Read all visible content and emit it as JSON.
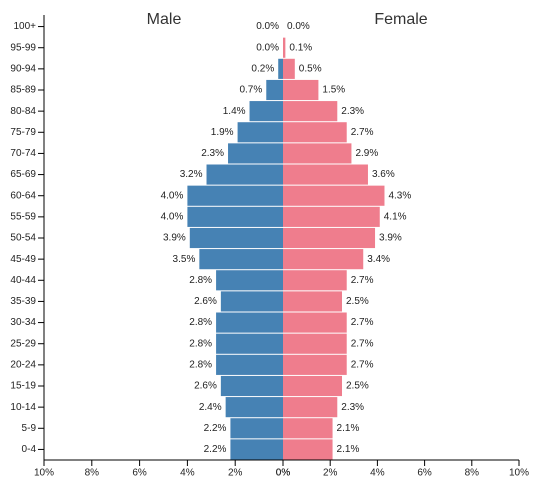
{
  "chart_data": [
    {
      "type": "pyramid-half",
      "title": "Male",
      "color": "#4682b4",
      "categories": [
        "100+",
        "95-99",
        "90-94",
        "85-89",
        "80-84",
        "75-79",
        "70-74",
        "65-69",
        "60-64",
        "55-59",
        "50-54",
        "45-49",
        "40-44",
        "35-39",
        "30-34",
        "25-29",
        "20-24",
        "15-19",
        "10-14",
        "5-9",
        "0-4"
      ],
      "values": [
        0.0,
        0.0,
        0.2,
        0.7,
        1.4,
        1.9,
        2.3,
        3.2,
        4.0,
        4.0,
        3.9,
        3.5,
        2.8,
        2.6,
        2.8,
        2.8,
        2.8,
        2.6,
        2.4,
        2.2,
        2.2
      ],
      "value_labels": [
        "0.0%",
        "0.0%",
        "0.2%",
        "0.7%",
        "1.4%",
        "1.9%",
        "2.3%",
        "3.2%",
        "4.0%",
        "4.0%",
        "3.9%",
        "3.5%",
        "2.8%",
        "2.6%",
        "2.8%",
        "2.8%",
        "2.8%",
        "2.6%",
        "2.4%",
        "2.2%",
        "2.2%"
      ],
      "xlim": [
        10,
        0
      ],
      "xticks": [
        {
          "value": 10,
          "label": "10%"
        },
        {
          "value": 8,
          "label": "8%"
        },
        {
          "value": 6,
          "label": "6%"
        },
        {
          "value": 4,
          "label": "4%"
        },
        {
          "value": 2,
          "label": "2%"
        },
        {
          "value": 0,
          "label": "0%"
        }
      ]
    },
    {
      "type": "pyramid-half",
      "title": "Female",
      "color": "#ef7d8d",
      "values": [
        0.0,
        0.1,
        0.5,
        1.5,
        2.3,
        2.7,
        2.9,
        3.6,
        4.3,
        4.1,
        3.9,
        3.4,
        2.7,
        2.5,
        2.7,
        2.7,
        2.7,
        2.5,
        2.3,
        2.1,
        2.1
      ],
      "value_labels": [
        "0.0%",
        "0.1%",
        "0.5%",
        "1.5%",
        "2.3%",
        "2.7%",
        "2.9%",
        "3.6%",
        "4.3%",
        "4.1%",
        "3.9%",
        "3.4%",
        "2.7%",
        "2.5%",
        "2.7%",
        "2.7%",
        "2.7%",
        "2.5%",
        "2.3%",
        "2.1%",
        "2.1%"
      ],
      "xlim": [
        0,
        10
      ],
      "xticks": [
        {
          "value": 0,
          "label": "0%"
        },
        {
          "value": 2,
          "label": "2%"
        },
        {
          "value": 4,
          "label": "4%"
        },
        {
          "value": 6,
          "label": "6%"
        },
        {
          "value": 8,
          "label": "8%"
        },
        {
          "value": 10,
          "label": "10%"
        }
      ]
    }
  ]
}
